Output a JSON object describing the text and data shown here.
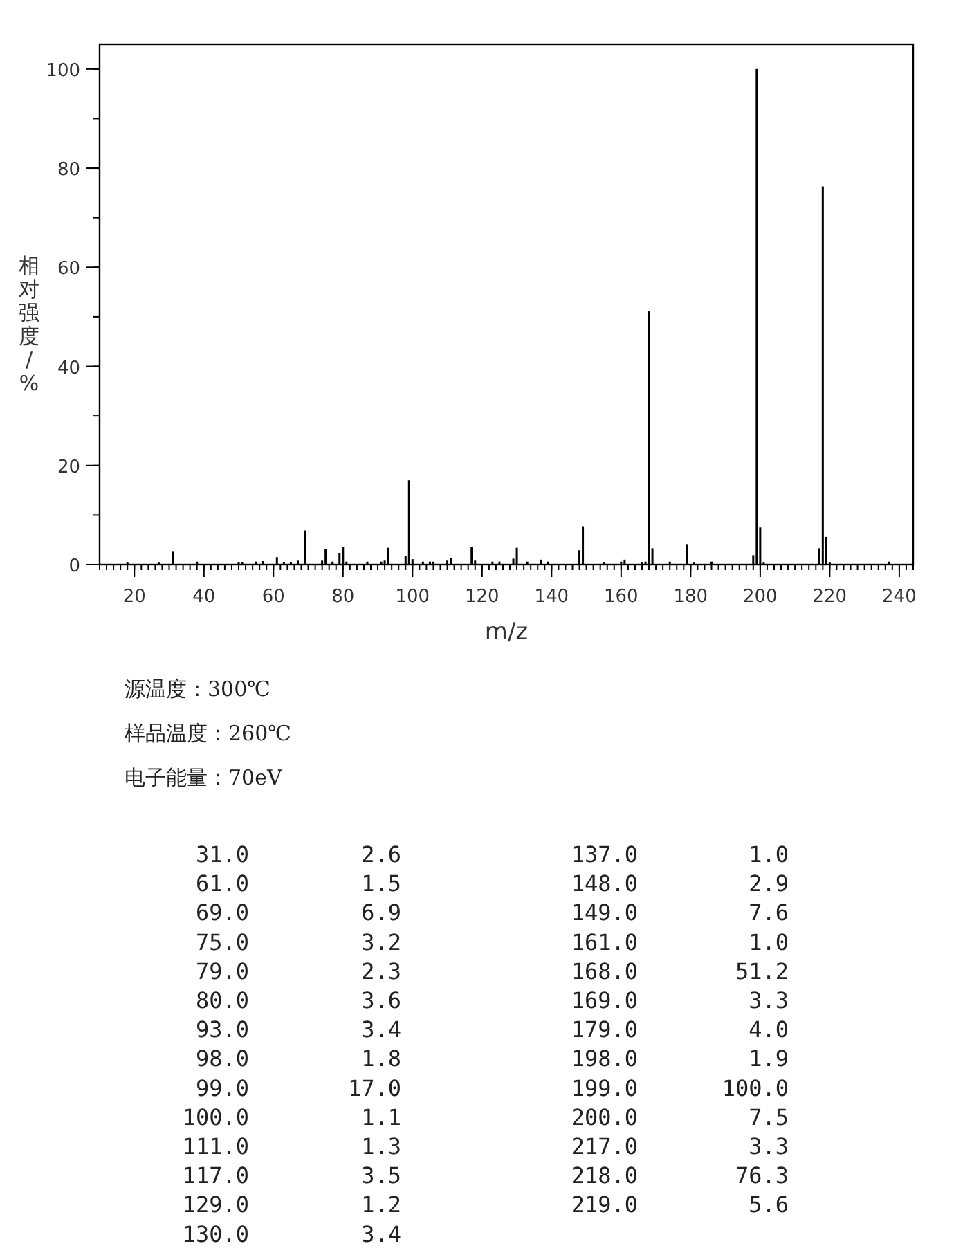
{
  "chart_data": [
    {
      "type": "bar",
      "xlabel": "m/z",
      "ylabel": "相对强度/%",
      "xlim": [
        10,
        244
      ],
      "ylim": [
        0,
        105
      ],
      "xticks": [
        20,
        40,
        60,
        80,
        100,
        120,
        140,
        160,
        180,
        200,
        220,
        240
      ],
      "yticks": [
        0,
        20,
        40,
        60,
        80,
        100
      ],
      "series": [
        {
          "color": "#000000",
          "x": [
            18,
            27,
            31,
            38,
            50,
            51,
            55,
            57,
            61,
            63,
            65,
            67,
            69,
            74,
            75,
            77,
            79,
            80,
            81,
            87,
            91,
            92,
            93,
            98,
            99,
            100,
            103,
            105,
            106,
            110,
            111,
            117,
            118,
            123,
            125,
            129,
            130,
            133,
            137,
            139,
            148,
            149,
            155,
            160,
            161,
            166,
            167,
            168,
            169,
            174,
            179,
            181,
            186,
            198,
            199,
            200,
            201,
            217,
            218,
            219,
            220,
            237
          ],
          "values": [
            0.4,
            0.4,
            2.6,
            0.6,
            0.5,
            0.5,
            0.6,
            0.7,
            1.5,
            0.5,
            0.5,
            0.8,
            6.9,
            0.8,
            3.2,
            0.6,
            2.3,
            3.6,
            0.6,
            0.6,
            0.6,
            0.8,
            3.4,
            1.8,
            17.0,
            1.1,
            0.6,
            0.6,
            0.6,
            0.8,
            1.3,
            3.5,
            0.8,
            0.6,
            0.6,
            1.2,
            3.4,
            0.6,
            1.0,
            0.6,
            2.9,
            7.6,
            0.4,
            0.6,
            1.0,
            0.4,
            0.6,
            51.2,
            3.3,
            0.6,
            4.0,
            0.4,
            0.6,
            1.9,
            100.0,
            7.5,
            0.4,
            3.3,
            76.3,
            5.6,
            0.4,
            0.6
          ]
        }
      ],
      "annotations": [
        "源温度：300℃",
        "样品温度：260℃",
        "电子能量：70eV"
      ]
    },
    {
      "type": "other",
      "annotations": [
        "31.0",
        "2.6",
        "61.0",
        "1.5",
        "69.0",
        "6.9",
        "75.0",
        "3.2",
        "79.0",
        "2.3",
        "80.0",
        "3.6",
        "93.0",
        "3.4",
        "98.0",
        "1.8",
        "99.0",
        "17.0",
        "100.0",
        "1.1",
        "111.0",
        "1.3",
        "117.0",
        "3.5",
        "129.0",
        "1.2",
        "130.0",
        "3.4",
        "137.0",
        "1.0",
        "148.0",
        "2.9",
        "149.0",
        "7.6",
        "161.0",
        "1.0",
        "168.0",
        "51.2",
        "169.0",
        "3.3",
        "179.0",
        "4.0",
        "198.0",
        "1.9",
        "199.0",
        "100.0",
        "200.0",
        "7.5",
        "217.0",
        "3.3",
        "218.0",
        "76.3",
        "219.0",
        "5.6"
      ]
    }
  ]
}
